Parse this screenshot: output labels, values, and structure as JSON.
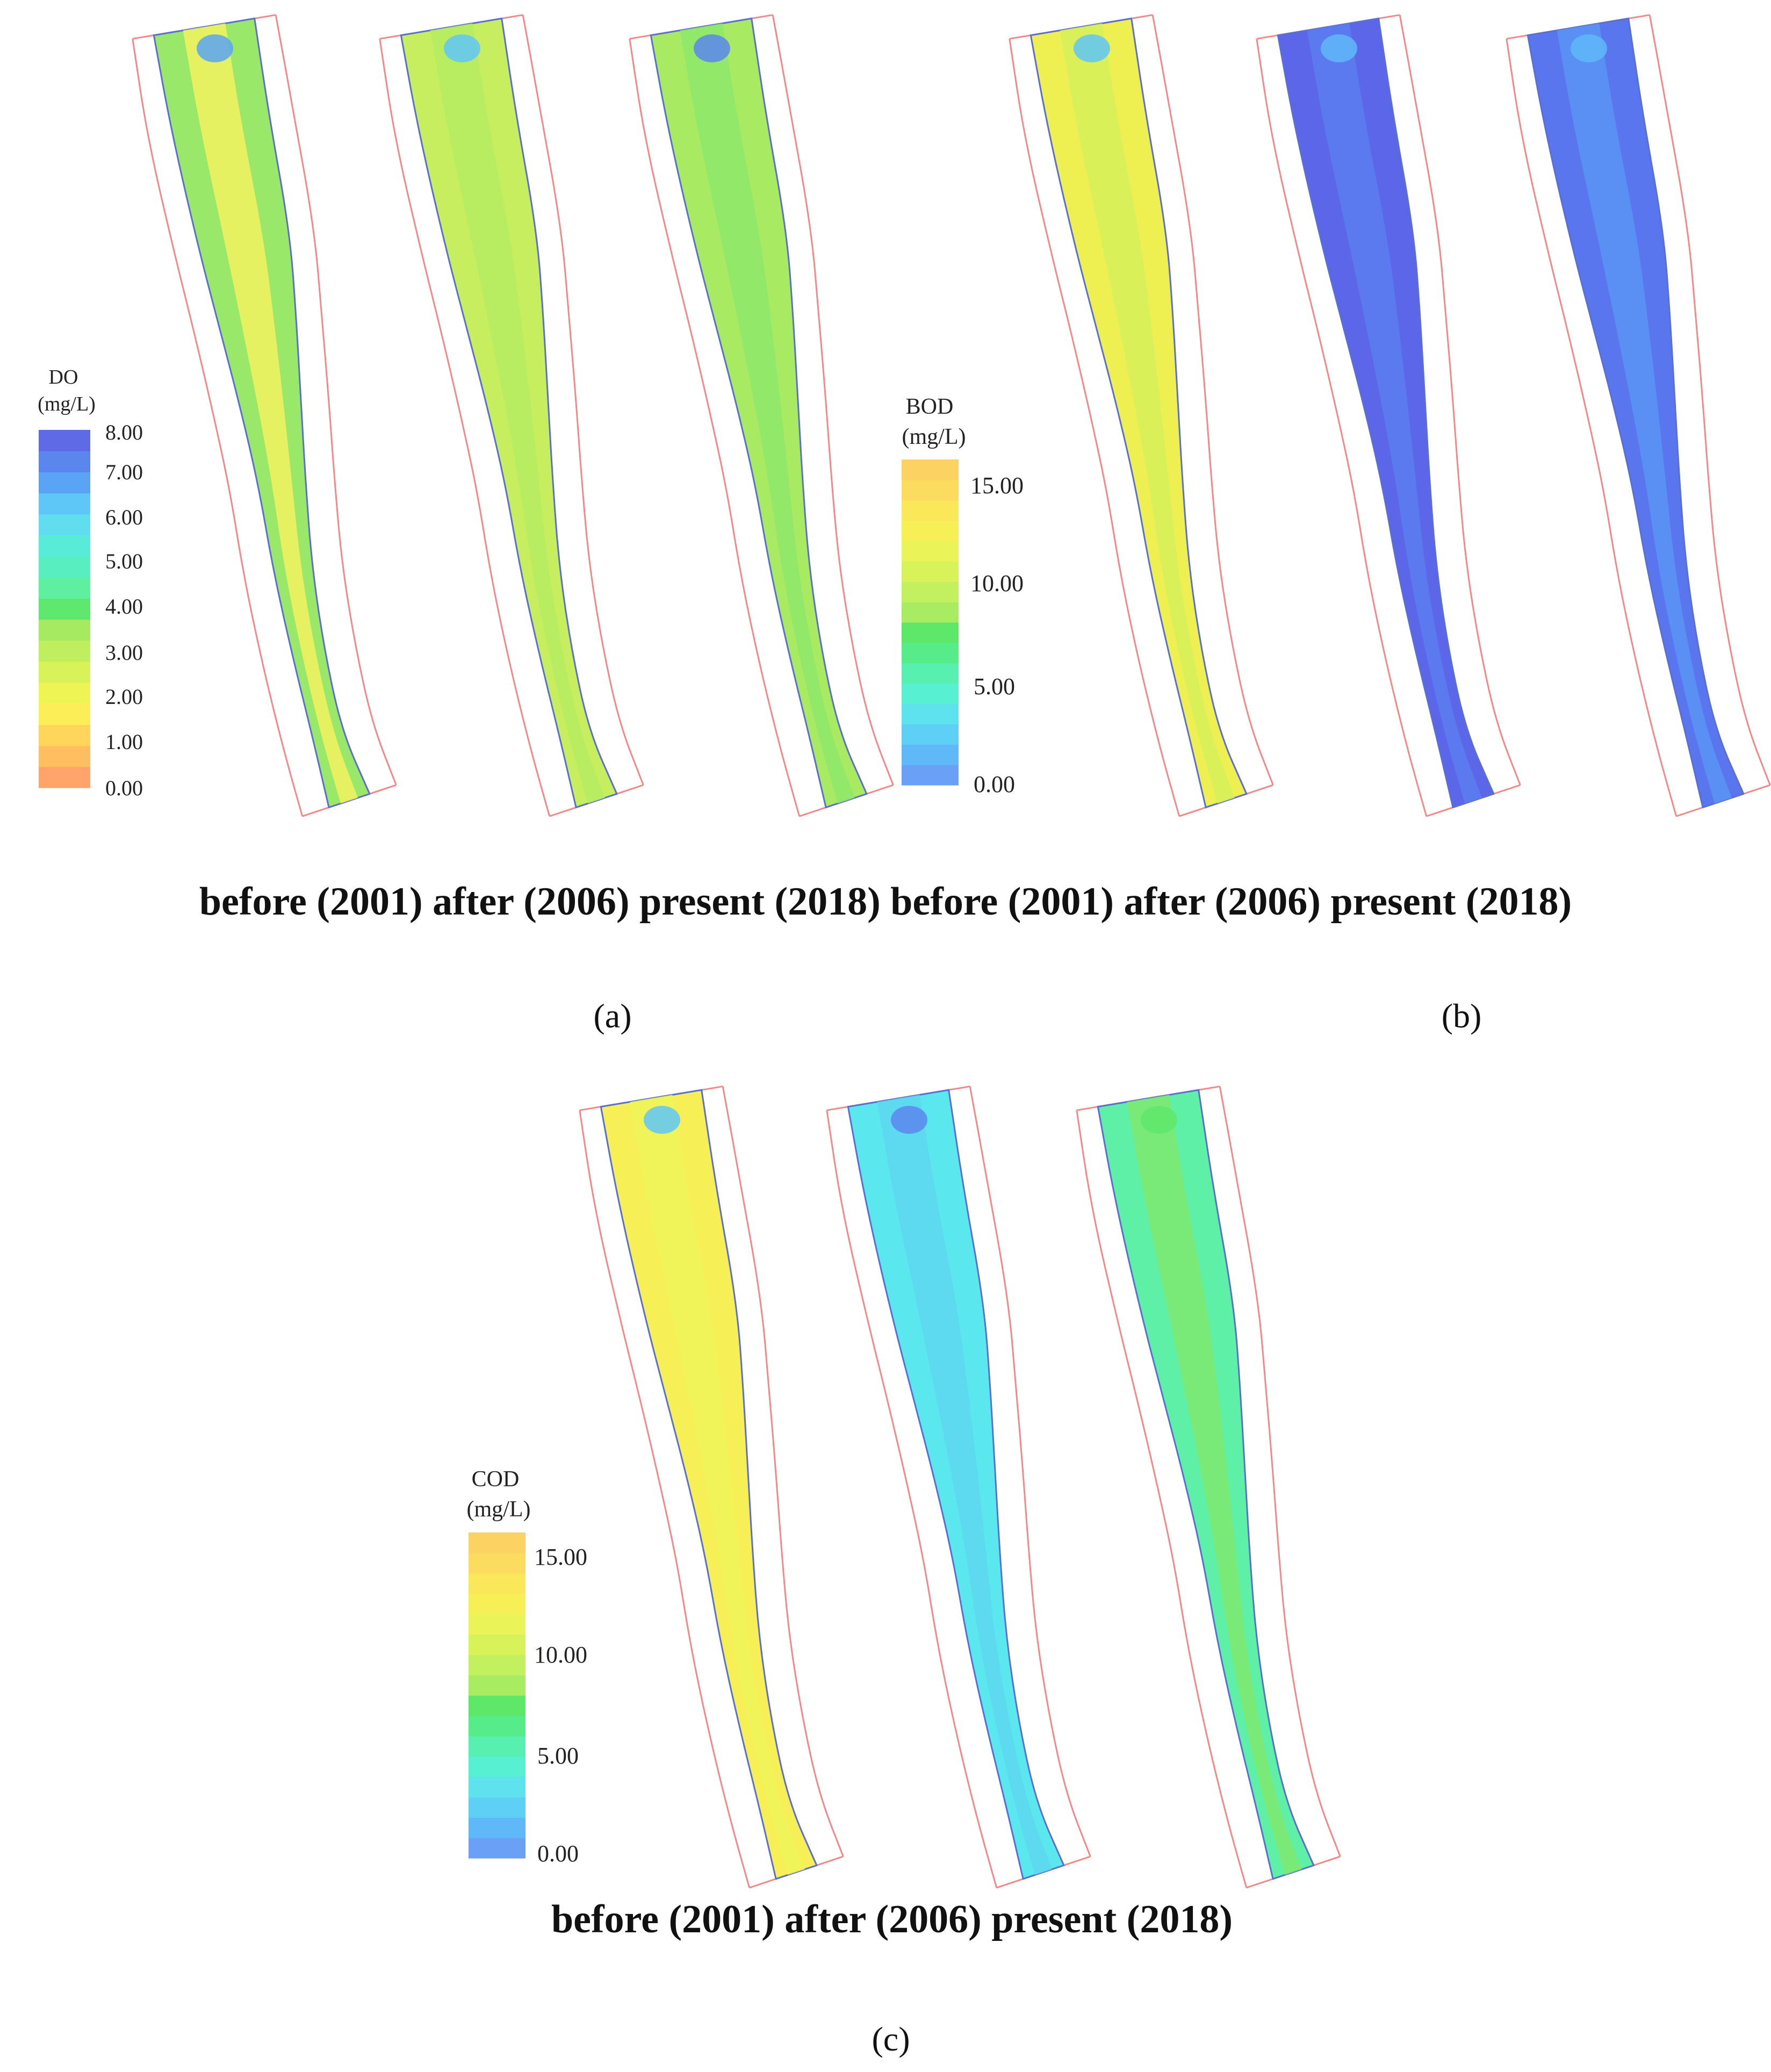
{
  "colors": {
    "bank": "#f08a8a",
    "edge": "#5a6fd0",
    "do_scale": [
      "#ffa46a",
      "#ffbf60",
      "#ffd65a",
      "#fbee56",
      "#eef454",
      "#d8f25a",
      "#bfee5e",
      "#a6ea62",
      "#5ee86e",
      "#5ef0a0",
      "#58eec0",
      "#58ecd8",
      "#60def0",
      "#5fc6f8",
      "#5aa4f6",
      "#5a86ee",
      "#5e6ae6"
    ],
    "conc_scale": [
      "#6aa0f6",
      "#5fb8f8",
      "#5ed0f6",
      "#5ee2ee",
      "#58f0d2",
      "#58f0b0",
      "#56ec8a",
      "#5ee86a",
      "#a8ec62",
      "#c2f05e",
      "#d8f25a",
      "#eaf458",
      "#f6f056",
      "#fae85a",
      "#fcdc5e",
      "#fcd262"
    ]
  },
  "panels": [
    {
      "id": "a",
      "tag": "(a)",
      "legend": {
        "title": "DO",
        "unit": "(mg/L)",
        "ticks": [
          "8.00",
          "7.00",
          "6.00",
          "5.00",
          "4.00",
          "3.00",
          "2.00",
          "1.00",
          "0.00"
        ]
      },
      "maps": [
        {
          "label": "before (2001)",
          "fill": "#9ae86a",
          "core": "#f2f25e",
          "head": "#5aa4f6"
        },
        {
          "label": "after (2006)",
          "fill": "#c6ee5e",
          "core": "#b6ec62",
          "head": "#5fc6f8"
        },
        {
          "label": "present (2018)",
          "fill": "#a8ea62",
          "core": "#8ee86a",
          "head": "#5a86ee"
        }
      ]
    },
    {
      "id": "b",
      "tag": "(b)",
      "legend": {
        "title": "BOD",
        "unit": "(mg/L)",
        "ticks": [
          "15.00",
          "10.00",
          "5.00",
          "0.00"
        ]
      },
      "maps": [
        {
          "label": "before (2001)",
          "fill": "#eef052",
          "core": "#d6f05a",
          "head": "#5fc6f8"
        },
        {
          "label": "after (2006)",
          "fill": "#5c66e8",
          "core": "#5a7ef0",
          "head": "#5fb8f8"
        },
        {
          "label": "present (2018)",
          "fill": "#5a76ee",
          "core": "#5a94f4",
          "head": "#5fb8f8"
        }
      ]
    },
    {
      "id": "c",
      "tag": "(c)",
      "legend": {
        "title": "COD",
        "unit": "(mg/L)",
        "ticks": [
          "15.00",
          "10.00",
          "5.00",
          "0.00"
        ]
      },
      "maps": [
        {
          "label": "before (2001)",
          "fill": "#f6f056",
          "core": "#eef458",
          "head": "#5fc6f8"
        },
        {
          "label": "after (2006)",
          "fill": "#5ae8ee",
          "core": "#5ed6f0",
          "head": "#5a86ee"
        },
        {
          "label": "present (2018)",
          "fill": "#5ef0a6",
          "core": "#7ee870",
          "head": "#5ee86a"
        }
      ]
    }
  ],
  "captions": {
    "top_row": "before (2001) after (2006) present (2018) before (2001) after (2006) present (2018)",
    "bottom_row": "before (2001) after (2006) present (2018)"
  }
}
